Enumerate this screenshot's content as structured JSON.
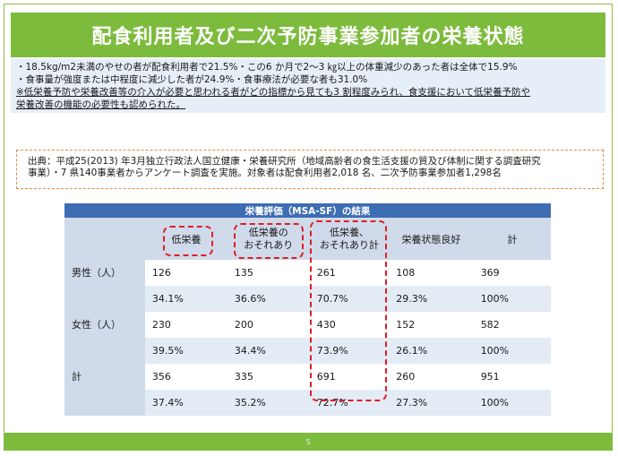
{
  "title": "配食利用者及び二次予防事業参加者の栄養状態",
  "summary": {
    "line1": "・18.5kg/m2未満のやせの者が配食利用者で21.5%・この6 か月で2～3 ㎏以上の体重減少のあった者は全体で15.9%",
    "line2": "・食事量が強度または中程度に減少した者が24.9%・食事療法が必要な者も31.0%",
    "line3": "※低栄養予防や栄養改善等の介入が必要と思われる者がどの指標から見ても3 割程度みられ、食支援において低栄養予防や",
    "line4": "栄養改善の機能の必要性も認められた。"
  },
  "source": {
    "line1": "出典：平成25(2013) 年3月独立行政法人国立健康・栄養研究所（地域高齢者の食生活支援の質及び体制に関する調査研究",
    "line2": "事業）・7 県140事業者からアンケート調査を実施。対象者は配食利用者2,018 名、二次予防事業参加者1,298名"
  },
  "table": {
    "title": "栄養評価（MSA-SF）の結果",
    "headers": [
      "",
      "低栄養",
      "低栄養の\nおそれあり",
      "低栄養、\nおそれあり計",
      "栄養状態良好",
      "計"
    ],
    "rows": [
      [
        "男性（人）",
        "126",
        "135",
        "261",
        "108",
        "369"
      ],
      [
        "",
        "34.1%",
        "36.6%",
        "70.7%",
        "29.3%",
        "100%"
      ],
      [
        "女性（人）",
        "230",
        "200",
        "430",
        "152",
        "582"
      ],
      [
        "",
        "39.5%",
        "34.4%",
        "73.9%",
        "26.1%",
        "100%"
      ],
      [
        "計",
        "356",
        "335",
        "691",
        "260",
        "951"
      ],
      [
        "",
        "37.4%",
        "35.2%",
        "72.7%",
        "27.3%",
        "100%"
      ]
    ]
  },
  "page_number": "5",
  "colors": {
    "accent_green": "#7dbb3d",
    "table_blue": "#3d6db3",
    "highlight_red": "#e01e26",
    "source_border": "#e4893a"
  }
}
